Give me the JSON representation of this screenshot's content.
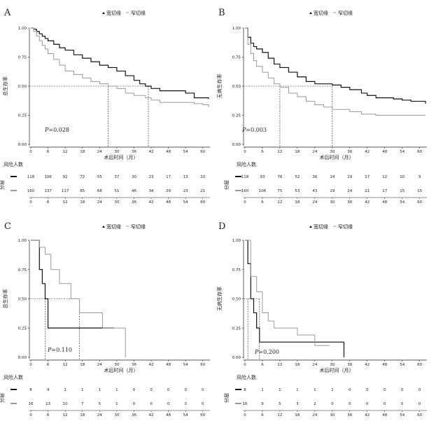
{
  "colors": {
    "wide": "#111111",
    "narrow": "#9a9a9a",
    "axis": "#222222"
  },
  "ytick_labels": [
    "1.00",
    "0.75",
    "0.50",
    "0.25",
    "0.00"
  ],
  "panels": [
    {
      "letter": "A",
      "legend": [
        "宽切缘",
        "窄切缘"
      ],
      "ylabel": "总生存率",
      "xlabel": "术后时间（月）",
      "pvalue": {
        "prefix": "P",
        "text": "=0.028"
      },
      "risk_title": "风险人数",
      "strata_label": "分层",
      "xticks": [
        0,
        6,
        12,
        18,
        24,
        30,
        36,
        42,
        48,
        54,
        60
      ],
      "risk_table": [
        [
          118,
          106,
          92,
          72,
          55,
          37,
          30,
          23,
          17,
          13,
          10
        ],
        [
          160,
          137,
          117,
          85,
          68,
          51,
          46,
          34,
          29,
          23,
          21
        ]
      ],
      "median_lines": [
        27,
        41
      ],
      "chart_data": {
        "type": "line",
        "title": "",
        "xlabel": "术后时间（月）",
        "ylabel": "总生存率",
        "xlim": [
          0,
          62
        ],
        "ylim": [
          0,
          1
        ],
        "series": [
          {
            "name": "宽切缘",
            "x": [
              0,
              1,
              2,
              3,
              4,
              5,
              6,
              8,
              10,
              12,
              15,
              18,
              21,
              24,
              27,
              30,
              33,
              36,
              38,
              40,
              42,
              45,
              48,
              51,
              54,
              57,
              60,
              62
            ],
            "y": [
              1.0,
              0.99,
              0.97,
              0.95,
              0.93,
              0.91,
              0.89,
              0.86,
              0.83,
              0.81,
              0.77,
              0.74,
              0.71,
              0.68,
              0.66,
              0.63,
              0.59,
              0.55,
              0.52,
              0.5,
              0.48,
              0.46,
              0.46,
              0.46,
              0.44,
              0.4,
              0.4,
              0.39
            ]
          },
          {
            "name": "窄切缘",
            "x": [
              0,
              1,
              2,
              3,
              4,
              5,
              6,
              8,
              10,
              12,
              15,
              18,
              21,
              24,
              27,
              30,
              33,
              36,
              40,
              42,
              45,
              48,
              51,
              54,
              57,
              60,
              62
            ],
            "y": [
              1.0,
              0.97,
              0.93,
              0.89,
              0.85,
              0.82,
              0.78,
              0.73,
              0.68,
              0.63,
              0.6,
              0.57,
              0.54,
              0.52,
              0.5,
              0.48,
              0.44,
              0.42,
              0.4,
              0.38,
              0.36,
              0.36,
              0.36,
              0.36,
              0.35,
              0.34,
              0.32
            ]
          }
        ]
      }
    },
    {
      "letter": "B",
      "legend": [
        "宽切缘",
        "窄切缘"
      ],
      "ylabel": "无病生存率",
      "xlabel": "术后时间（月）",
      "pvalue": {
        "prefix": "P",
        "text": "=0.003"
      },
      "risk_title": "风险人数",
      "strata_label": "分层",
      "xticks": [
        0,
        6,
        12,
        18,
        24,
        30,
        36,
        42,
        48,
        54,
        60
      ],
      "risk_table": [
        [
          118,
          93,
          76,
          52,
          36,
          24,
          19,
          17,
          12,
          10,
          9
        ],
        [
          160,
          106,
          75,
          53,
          43,
          29,
          24,
          21,
          17,
          15,
          15
        ]
      ],
      "median_lines": [
        12,
        30
      ],
      "chart_data": {
        "type": "line",
        "title": "",
        "xlabel": "术后时间（月）",
        "ylabel": "无病生存率",
        "xlim": [
          0,
          62
        ],
        "ylim": [
          0,
          1
        ],
        "series": [
          {
            "name": "宽切缘",
            "x": [
              0,
              1,
              2,
              3,
              4,
              6,
              8,
              10,
              12,
              15,
              18,
              21,
              24,
              27,
              30,
              33,
              36,
              40,
              42,
              45,
              48,
              51,
              54,
              57,
              60,
              62
            ],
            "y": [
              1.0,
              0.92,
              0.87,
              0.84,
              0.82,
              0.79,
              0.74,
              0.69,
              0.66,
              0.62,
              0.58,
              0.54,
              0.52,
              0.52,
              0.51,
              0.49,
              0.47,
              0.44,
              0.42,
              0.4,
              0.4,
              0.39,
              0.38,
              0.37,
              0.37,
              0.35
            ]
          },
          {
            "name": "窄切缘",
            "x": [
              0,
              1,
              2,
              3,
              4,
              6,
              8,
              10,
              12,
              15,
              18,
              21,
              24,
              27,
              30,
              33,
              36,
              40,
              42,
              45,
              48,
              51,
              54,
              57,
              60,
              62
            ],
            "y": [
              1.0,
              0.86,
              0.78,
              0.72,
              0.67,
              0.62,
              0.57,
              0.52,
              0.49,
              0.44,
              0.41,
              0.37,
              0.34,
              0.32,
              0.3,
              0.3,
              0.28,
              0.26,
              0.26,
              0.25,
              0.25,
              0.25,
              0.25,
              0.25,
              0.25,
              0.25
            ]
          }
        ]
      }
    },
    {
      "letter": "C",
      "legend": [
        "宽切缘",
        "窄切缘"
      ],
      "ylabel": "总生存率",
      "xlabel": "术后时间（月）",
      "pvalue": {
        "prefix": "P",
        "text": "=0.110"
      },
      "risk_title": "风险人数",
      "strata_label": "分层",
      "xticks": [
        0,
        6,
        12,
        18,
        24,
        30,
        36,
        42,
        48,
        54,
        60
      ],
      "risk_table": [
        [
          8,
          4,
          1,
          1,
          1,
          1,
          0,
          0,
          0,
          0,
          0
        ],
        [
          16,
          13,
          10,
          7,
          5,
          1,
          0,
          0,
          0,
          0,
          0
        ]
      ],
      "median_lines": [
        5,
        17
      ],
      "chart_data": {
        "type": "line",
        "title": "",
        "xlabel": "术后时间（月）",
        "ylabel": "总生存率",
        "xlim": [
          0,
          62
        ],
        "ylim": [
          0,
          1
        ],
        "series": [
          {
            "name": "宽切缘",
            "x": [
              0,
              3,
              3,
              4,
              4,
              5,
              5,
              6,
              6,
              29
            ],
            "y": [
              1.0,
              1.0,
              0.75,
              0.75,
              0.63,
              0.63,
              0.5,
              0.5,
              0.25,
              0.25
            ]
          },
          {
            "name": "窄切缘",
            "x": [
              0,
              3,
              3,
              5,
              5,
              7,
              7,
              10,
              10,
              14,
              14,
              17,
              17,
              25,
              25,
              33,
              33
            ],
            "y": [
              1.0,
              1.0,
              0.94,
              0.94,
              0.88,
              0.88,
              0.75,
              0.75,
              0.63,
              0.63,
              0.5,
              0.5,
              0.38,
              0.38,
              0.25,
              0.25,
              0.0
            ]
          }
        ]
      }
    },
    {
      "letter": "D",
      "legend": [
        "宽切缘",
        "窄切缘"
      ],
      "ylabel": "无病生存率",
      "xlabel": "术后时间（月）",
      "pvalue": {
        "prefix": "P",
        "text": "=0.200"
      },
      "risk_title": "风险人数",
      "strata_label": "分层",
      "xticks": [
        0,
        6,
        12,
        18,
        24,
        30,
        36,
        42,
        48,
        54,
        60
      ],
      "risk_table": [
        [
          8,
          1,
          1,
          1,
          1,
          1,
          0,
          0,
          0,
          0,
          0
        ],
        [
          16,
          9,
          5,
          3,
          2,
          0,
          0,
          0,
          0,
          0,
          0
        ]
      ],
      "median_lines": [
        1,
        5
      ],
      "chart_data": {
        "type": "line",
        "title": "",
        "xlabel": "术后时间（月）",
        "ylabel": "无病生存率",
        "xlim": [
          0,
          62
        ],
        "ylim": [
          0,
          1
        ],
        "series": [
          {
            "name": "宽切缘",
            "x": [
              0,
              1,
              1,
              2,
              2,
              3,
              3,
              4,
              4,
              5,
              5,
              34,
              34
            ],
            "y": [
              1.0,
              1.0,
              0.8,
              0.8,
              0.5,
              0.5,
              0.38,
              0.38,
              0.25,
              0.25,
              0.13,
              0.13,
              0.0
            ]
          },
          {
            "name": "窄切缘",
            "x": [
              0,
              2,
              2,
              4,
              4,
              6,
              6,
              8,
              8,
              10,
              10,
              18,
              18,
              24,
              24,
              29
            ],
            "y": [
              1.0,
              1.0,
              0.69,
              0.69,
              0.56,
              0.56,
              0.38,
              0.38,
              0.31,
              0.31,
              0.25,
              0.25,
              0.19,
              0.19,
              0.1,
              0.1
            ]
          }
        ]
      }
    }
  ]
}
